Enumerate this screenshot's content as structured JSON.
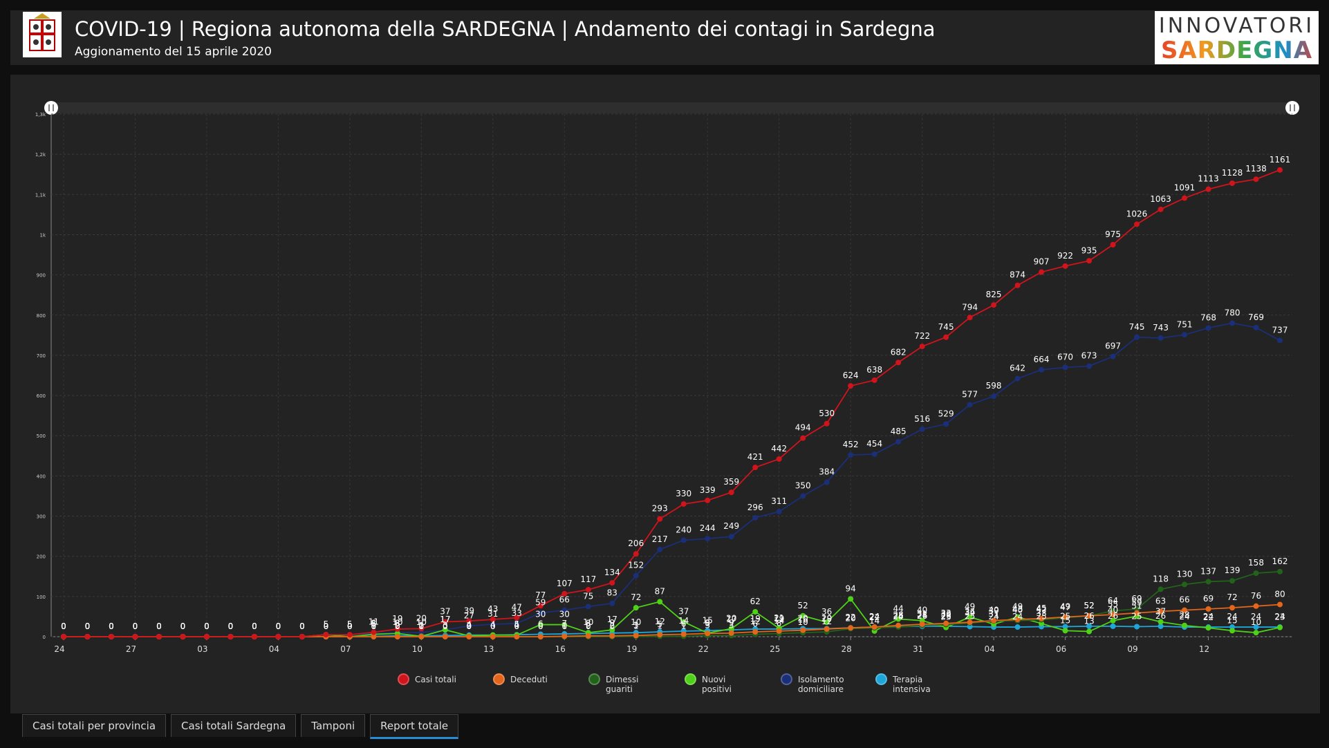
{
  "header": {
    "title": "COVID-19 | Regiona autonoma della SARDEGNA | Andamento dei contagi in Sardegna",
    "subtitle": "Aggionamento del 15 aprile 2020",
    "brand_top": "INNOVATORI",
    "brand_bottom": "SARDEGNA"
  },
  "chart_data": {
    "type": "line",
    "grid": true,
    "data_labels": true,
    "legend": "bottom",
    "ylim": [
      0,
      1300
    ],
    "yticks": [
      0,
      100,
      200,
      300,
      400,
      500,
      600,
      700,
      800,
      900,
      {
        "value": 1000,
        "label": "1k"
      },
      {
        "value": 1100,
        "label": "1,1k"
      },
      {
        "value": 1200,
        "label": "1,2k"
      },
      {
        "value": 1300,
        "label": "1,3k"
      }
    ],
    "categories": [
      "24",
      null,
      null,
      "27",
      null,
      null,
      "03",
      null,
      null,
      "04",
      null,
      null,
      "07",
      null,
      null,
      "10",
      null,
      null,
      "13",
      null,
      null,
      "16",
      null,
      null,
      "19",
      null,
      null,
      "22",
      null,
      null,
      "25",
      null,
      null,
      "28",
      null,
      null,
      "31",
      null,
      null,
      "04",
      null,
      null,
      "06",
      null,
      null,
      "09",
      null,
      null,
      "12",
      null,
      null,
      null
    ],
    "series": [
      {
        "name": "Casi totali",
        "color": "#d0141c",
        "values": [
          0,
          0,
          0,
          0,
          0,
          0,
          0,
          0,
          0,
          0,
          0,
          5,
          5,
          11,
          19,
          20,
          37,
          39,
          43,
          47,
          77,
          107,
          117,
          134,
          206,
          293,
          330,
          339,
          359,
          421,
          442,
          494,
          530,
          624,
          638,
          682,
          722,
          745,
          794,
          825,
          874,
          907,
          922,
          935,
          975,
          1026,
          1063,
          1091,
          1113,
          1128,
          1138,
          1161
        ]
      },
      {
        "name": "Deceduti",
        "color": "#e4661b",
        "values": [
          0,
          0,
          0,
          0,
          0,
          0,
          0,
          0,
          0,
          0,
          0,
          0,
          0,
          0,
          0,
          0,
          0,
          0,
          0,
          0,
          0,
          1,
          2,
          2,
          3,
          5,
          6,
          8,
          9,
          12,
          14,
          16,
          19,
          22,
          24,
          28,
          31,
          33,
          36,
          40,
          43,
          45,
          49,
          52,
          55,
          59,
          63,
          66,
          69,
          72,
          76,
          80
        ]
      },
      {
        "name": "Dimessi guariti",
        "color": "#23621b",
        "values": [
          0,
          0,
          0,
          0,
          0,
          0,
          0,
          0,
          0,
          0,
          0,
          0,
          0,
          0,
          0,
          0,
          0,
          0,
          0,
          0,
          0,
          0,
          0,
          0,
          1,
          1,
          1,
          3,
          3,
          6,
          8,
          10,
          12,
          20,
          22,
          24,
          28,
          30,
          34,
          39,
          40,
          42,
          47,
          52,
          64,
          69,
          118,
          130,
          137,
          139,
          158,
          162
        ]
      },
      {
        "name": "Nuovi positivi",
        "color": "#4fd11a",
        "values": [
          0,
          0,
          0,
          0,
          0,
          0,
          0,
          0,
          0,
          0,
          0,
          5,
          0,
          6,
          8,
          1,
          17,
          2,
          4,
          4,
          30,
          30,
          10,
          17,
          72,
          87,
          37,
          9,
          20,
          62,
          21,
          52,
          36,
          94,
          14,
          44,
          40,
          23,
          49,
          31,
          49,
          33,
          15,
          13,
          40,
          51,
          37,
          28,
          22,
          15,
          10,
          23
        ]
      },
      {
        "name": "Isolamento domiciliare",
        "color": "#1a2f78",
        "values": [
          0,
          0,
          0,
          0,
          0,
          0,
          0,
          0,
          0,
          0,
          0,
          5,
          5,
          8,
          10,
          10,
          17,
          27,
          31,
          33,
          59,
          66,
          75,
          83,
          152,
          217,
          240,
          244,
          249,
          296,
          311,
          350,
          384,
          452,
          454,
          485,
          516,
          529,
          577,
          598,
          642,
          664,
          670,
          673,
          697,
          745,
          743,
          751,
          768,
          780,
          769,
          737
        ]
      },
      {
        "name": "Terapia intensiva",
        "color": "#1fa6d8",
        "values": [
          0,
          0,
          0,
          0,
          0,
          0,
          0,
          0,
          0,
          0,
          0,
          0,
          0,
          1,
          2,
          2,
          3,
          4,
          4,
          5,
          6,
          7,
          8,
          9,
          10,
          12,
          14,
          15,
          17,
          19,
          19,
          20,
          20,
          22,
          24,
          25,
          26,
          26,
          25,
          24,
          24,
          25,
          25,
          26,
          26,
          25,
          26,
          24,
          24,
          24,
          24,
          24
        ]
      }
    ]
  },
  "tabs": [
    "Casi totali per provincia",
    "Casi totali Sardegna",
    "Tamponi",
    "Report totale"
  ],
  "active_tab": 3
}
